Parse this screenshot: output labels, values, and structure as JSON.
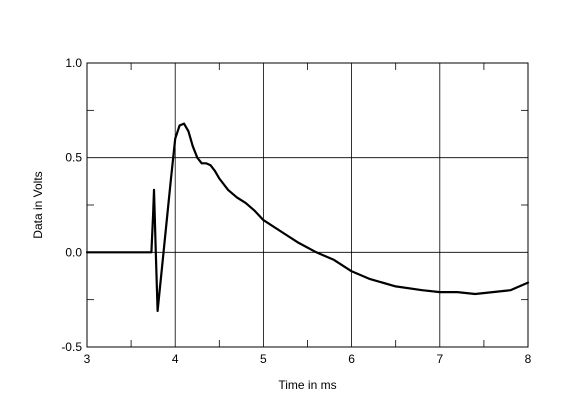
{
  "chart_data": {
    "type": "line",
    "title": "",
    "xlabel": "Time in ms",
    "ylabel": "Data in Volts",
    "xlim": [
      3,
      8
    ],
    "ylim": [
      -0.5,
      1.0
    ],
    "xticks": [
      3,
      4,
      5,
      6,
      7,
      8
    ],
    "xtick_labels": [
      "3",
      "4",
      "5",
      "6",
      "7",
      "8"
    ],
    "yticks": [
      -0.5,
      0.0,
      0.5,
      1.0
    ],
    "ytick_labels": [
      "-0.5",
      "0.0",
      "0.5",
      "1.0"
    ],
    "grid": true,
    "legend": "none",
    "line_color": "#000000",
    "series": [
      {
        "x": [
          3.0,
          3.2,
          3.5,
          3.73,
          3.75,
          3.76,
          3.78,
          3.8,
          3.82,
          3.85,
          3.9,
          3.95,
          4.0,
          4.05,
          4.1,
          4.15,
          4.2,
          4.25,
          4.3,
          4.35,
          4.4,
          4.45,
          4.5,
          4.6,
          4.7,
          4.8,
          4.9,
          5.0,
          5.2,
          5.4,
          5.6,
          5.8,
          6.0,
          6.2,
          6.5,
          6.8,
          7.0,
          7.2,
          7.4,
          7.6,
          7.8,
          8.0
        ],
        "y": [
          0.0,
          0.0,
          0.0,
          0.0,
          0.2,
          0.33,
          0.0,
          -0.31,
          -0.22,
          -0.08,
          0.15,
          0.38,
          0.6,
          0.67,
          0.68,
          0.64,
          0.56,
          0.5,
          0.47,
          0.47,
          0.46,
          0.43,
          0.39,
          0.33,
          0.29,
          0.26,
          0.22,
          0.17,
          0.11,
          0.05,
          0.0,
          -0.04,
          -0.1,
          -0.14,
          -0.18,
          -0.2,
          -0.21,
          -0.21,
          -0.22,
          -0.21,
          -0.2,
          -0.16
        ]
      }
    ]
  }
}
